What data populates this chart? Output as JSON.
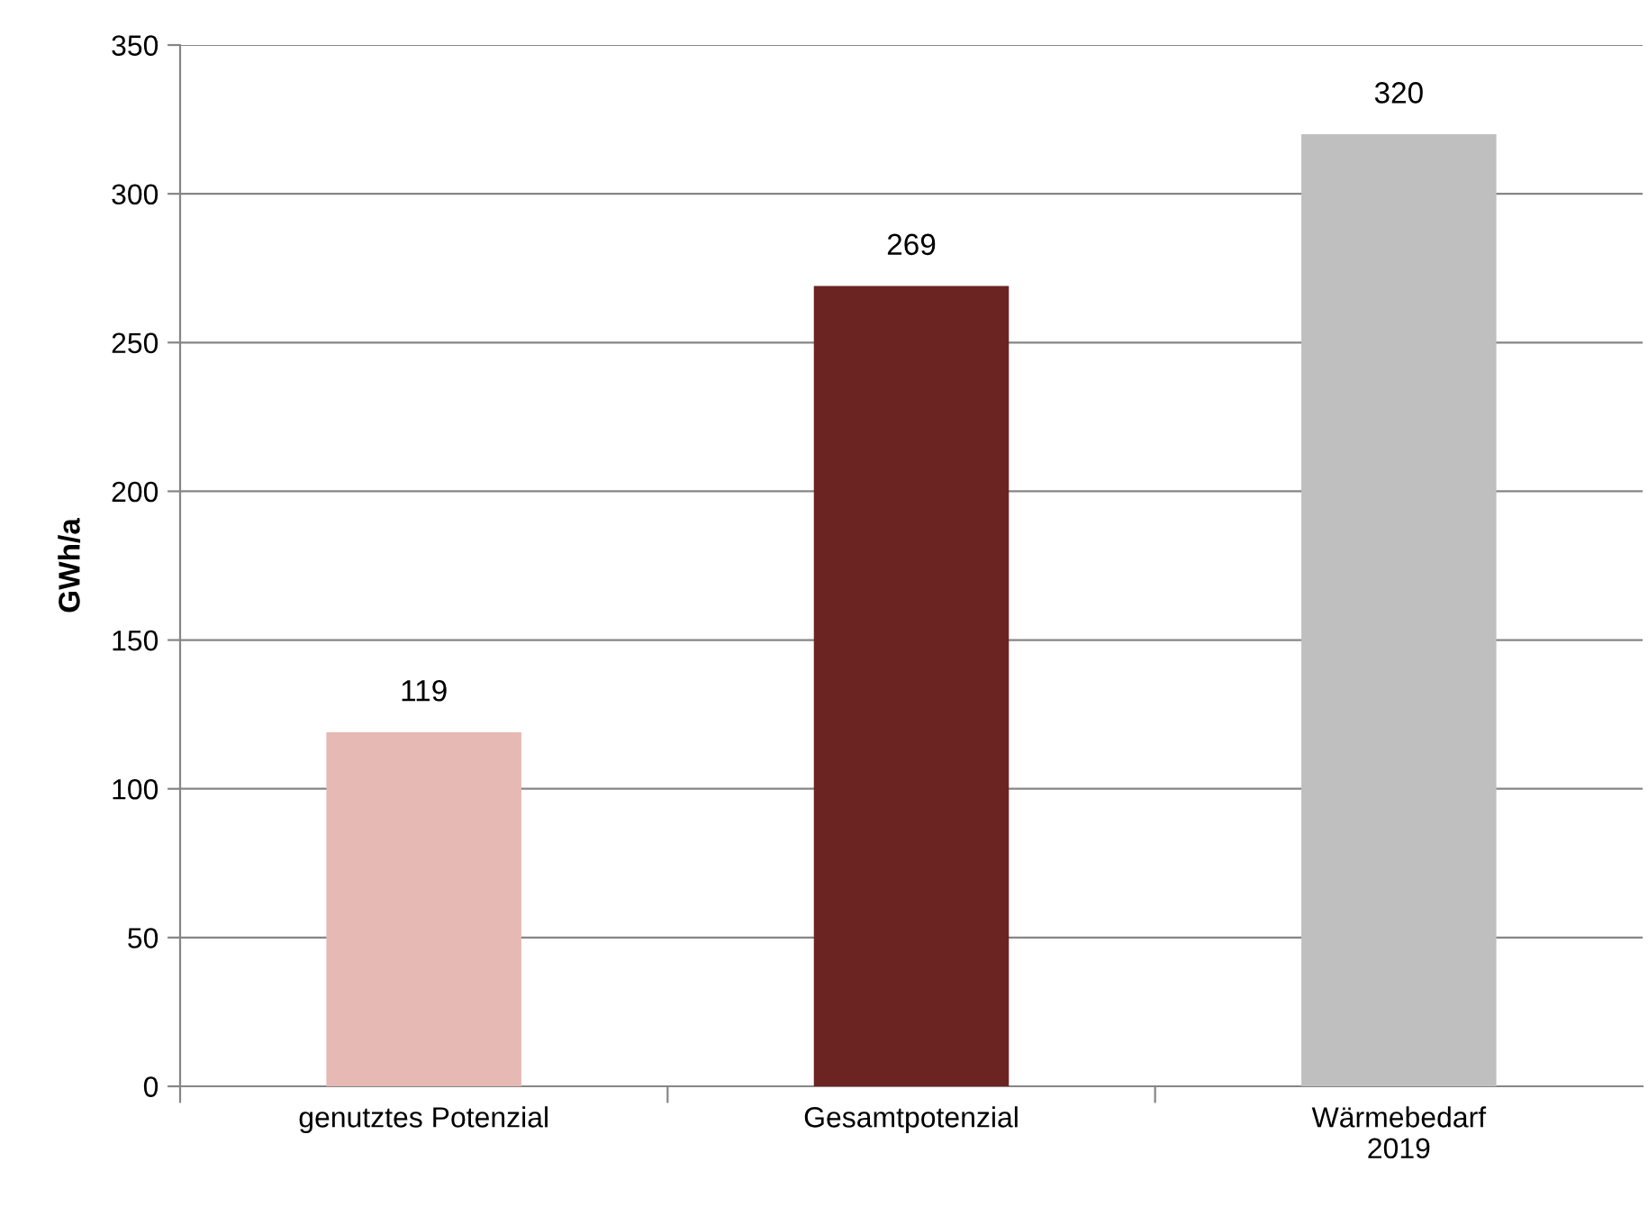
{
  "chart_data": {
    "type": "bar",
    "ylabel": "GWh/a",
    "categories": [
      "genutztes Potenzial",
      "Gesamtpotenzial",
      "Wärmebedarf\n2019"
    ],
    "values": [
      119,
      269,
      320
    ],
    "colors": [
      "#e6b9b5",
      "#6b2422",
      "#bfbfbf"
    ],
    "ylim": [
      0,
      350
    ],
    "yticks": [
      0,
      50,
      100,
      150,
      200,
      250,
      300,
      350
    ],
    "grid": "y",
    "data_labels": true,
    "legend": false
  }
}
